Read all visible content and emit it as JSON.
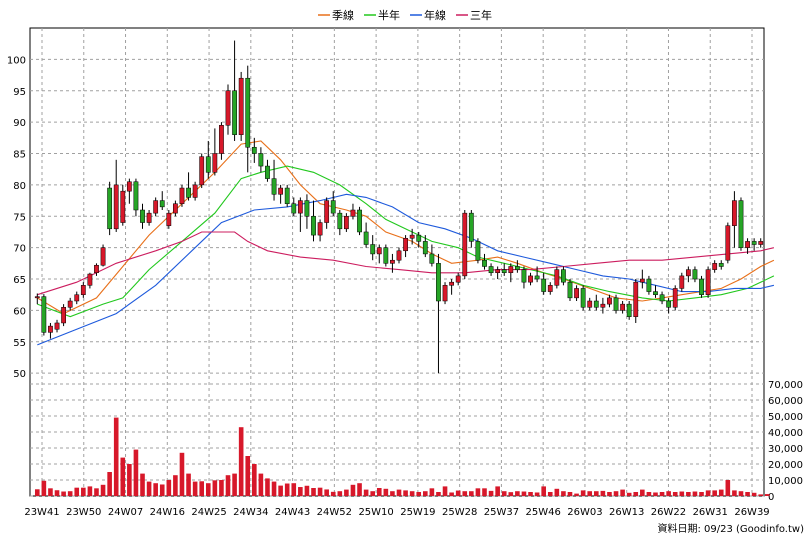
{
  "legend": [
    {
      "label": "季線",
      "color": "#e8701a"
    },
    {
      "label": "半年",
      "color": "#22c81e"
    },
    {
      "label": "年線",
      "color": "#1e5adc"
    },
    {
      "label": "三年",
      "color": "#cc1d5f"
    }
  ],
  "source_label": "資料日期: 09/23  (Goodinfo.tw)",
  "colors": {
    "up": "#d7182a",
    "down": "#26a526",
    "volume": "#d7182a"
  },
  "chart_data": {
    "type": "candlestick",
    "price_ticks": [
      50,
      55,
      60,
      65,
      70,
      75,
      80,
      85,
      90,
      95,
      100
    ],
    "price_range": [
      47,
      105
    ],
    "volume_ticks": [
      "0",
      "10,000",
      "20,000",
      "30,000",
      "40,000",
      "50,000",
      "60,000",
      "70,000"
    ],
    "volume_range": [
      0,
      70000
    ],
    "x_labels": [
      "23W41",
      "23W50",
      "24W07",
      "24W16",
      "24W25",
      "24W34",
      "24W43",
      "24W52",
      "25W10",
      "25W19",
      "25W28",
      "25W37",
      "25W46",
      "26W03",
      "26W13",
      "26W22",
      "26W31",
      "26W39"
    ],
    "ohlc": [
      [
        62,
        62.7,
        61,
        62.2
      ],
      [
        62.2,
        62.6,
        56,
        56.5
      ],
      [
        56.5,
        58,
        55.5,
        57.5
      ],
      [
        57,
        58.5,
        56.5,
        58
      ],
      [
        58,
        61,
        57.5,
        60.5
      ],
      [
        60.5,
        62,
        60,
        61.5
      ],
      [
        61.5,
        63,
        61,
        62.5
      ],
      [
        62.5,
        64.5,
        62,
        64
      ],
      [
        64,
        66,
        63.5,
        65.8
      ],
      [
        66,
        67.5,
        65.5,
        67.2
      ],
      [
        67.2,
        70.5,
        67,
        70
      ],
      [
        79.5,
        80.5,
        72,
        73
      ],
      [
        73,
        84,
        72.5,
        80
      ],
      [
        74,
        80,
        73.5,
        79
      ],
      [
        79,
        81,
        77,
        80.5
      ],
      [
        80.5,
        81,
        75,
        76
      ],
      [
        76,
        77,
        73,
        74
      ],
      [
        74,
        76,
        73.5,
        75.5
      ],
      [
        75.5,
        78,
        75,
        77.5
      ],
      [
        77.5,
        79,
        76,
        76.5
      ],
      [
        73.5,
        76,
        73,
        75.5
      ],
      [
        75.5,
        77.5,
        75,
        77
      ],
      [
        77,
        80,
        76.5,
        79.5
      ],
      [
        79.5,
        82,
        77.5,
        78
      ],
      [
        78,
        80.5,
        77.5,
        80
      ],
      [
        80,
        85,
        79.5,
        84.5
      ],
      [
        84.5,
        87,
        81,
        82
      ],
      [
        82,
        89,
        81.5,
        85
      ],
      [
        85,
        90,
        84,
        89.5
      ],
      [
        89.5,
        96,
        88,
        95
      ],
      [
        95,
        103,
        87,
        88
      ],
      [
        88,
        98,
        87,
        97
      ],
      [
        97,
        99,
        82,
        86
      ],
      [
        86,
        87.5,
        83.5,
        85
      ],
      [
        85,
        86,
        82,
        83
      ],
      [
        83,
        84,
        80.5,
        81
      ],
      [
        81,
        84,
        77.5,
        78.5
      ],
      [
        78.5,
        80,
        77,
        79.5
      ],
      [
        79.5,
        80,
        76.5,
        77
      ],
      [
        77,
        78,
        75,
        75.5
      ],
      [
        75.5,
        78,
        72.5,
        77.5
      ],
      [
        77.5,
        78.5,
        73,
        75
      ],
      [
        75,
        77.5,
        71,
        72
      ],
      [
        72,
        74.5,
        71,
        74
      ],
      [
        74,
        78,
        73,
        77.5
      ],
      [
        77.5,
        79,
        75,
        75.5
      ],
      [
        75.5,
        76,
        72,
        73
      ],
      [
        73,
        75.5,
        72.5,
        75
      ],
      [
        75,
        77,
        74.5,
        76
      ],
      [
        76,
        76.5,
        72,
        72.5
      ],
      [
        72.5,
        74,
        70,
        70.5
      ],
      [
        70.5,
        72,
        68,
        69
      ],
      [
        69,
        70.5,
        67.5,
        70
      ],
      [
        70,
        70.5,
        67,
        67.5
      ],
      [
        67.5,
        69,
        66,
        68
      ],
      [
        68,
        70,
        67.5,
        69.5
      ],
      [
        69.5,
        72,
        68.5,
        71.5
      ],
      [
        71.5,
        73,
        70.5,
        72
      ],
      [
        72,
        72.5,
        70,
        71
      ],
      [
        71,
        72,
        68.5,
        69
      ],
      [
        69,
        70.5,
        67,
        67.5
      ],
      [
        67.5,
        69,
        50,
        61.5
      ],
      [
        61.5,
        64.5,
        61,
        64
      ],
      [
        64,
        65,
        62.5,
        64.5
      ],
      [
        64.5,
        66,
        64,
        65.5
      ],
      [
        65.5,
        76,
        65,
        75.5
      ],
      [
        75.5,
        76,
        70,
        71
      ],
      [
        71,
        71.5,
        67.5,
        68
      ],
      [
        68,
        69,
        66.5,
        67
      ],
      [
        67,
        67.5,
        65.5,
        66
      ],
      [
        66,
        67,
        65,
        66.5
      ],
      [
        66.5,
        67.5,
        65.5,
        66
      ],
      [
        66,
        67.5,
        64.5,
        67
      ],
      [
        67,
        68,
        66,
        66.5
      ],
      [
        66.5,
        67,
        63.5,
        64.5
      ],
      [
        64.5,
        66,
        64,
        65.5
      ],
      [
        65.5,
        67,
        64.5,
        65
      ],
      [
        65,
        66,
        62.5,
        63
      ],
      [
        63,
        64.5,
        62.5,
        64
      ],
      [
        64,
        67,
        63.5,
        66.5
      ],
      [
        66.5,
        67,
        64,
        64.5
      ],
      [
        64.5,
        65,
        61.5,
        62
      ],
      [
        62,
        64,
        61.5,
        63.5
      ],
      [
        63.5,
        64,
        60,
        60.5
      ],
      [
        60.5,
        62,
        60,
        61.5
      ],
      [
        61.5,
        62.5,
        60,
        60.5
      ],
      [
        60.5,
        62,
        59.5,
        61
      ],
      [
        61,
        62.5,
        60.5,
        62
      ],
      [
        62,
        62.5,
        59.5,
        60
      ],
      [
        60,
        61.5,
        59.5,
        61
      ],
      [
        61,
        61.5,
        58.5,
        59
      ],
      [
        59,
        65,
        58,
        64.5
      ],
      [
        64.5,
        66.5,
        63.5,
        65
      ],
      [
        65,
        65.5,
        62.5,
        63
      ],
      [
        63,
        64,
        62,
        62.5
      ],
      [
        62.5,
        63,
        61,
        61.5
      ],
      [
        61.5,
        62,
        59.5,
        60.5
      ],
      [
        60.5,
        64,
        60,
        63.5
      ],
      [
        63.5,
        66,
        63,
        65.5
      ],
      [
        65.5,
        67,
        64.5,
        66.5
      ],
      [
        66.5,
        67,
        64.5,
        65
      ],
      [
        65,
        65.5,
        62,
        62.5
      ],
      [
        62.5,
        67,
        62,
        66.5
      ],
      [
        66.5,
        68,
        66,
        67.5
      ],
      [
        67.5,
        68,
        66.5,
        67
      ],
      [
        68,
        74,
        67.5,
        73.5
      ],
      [
        73.5,
        79,
        70,
        77.5
      ],
      [
        77.5,
        78,
        69.5,
        70
      ],
      [
        70,
        71.5,
        69,
        71
      ],
      [
        71,
        71.5,
        69.5,
        70.5
      ],
      [
        70.5,
        71.5,
        70,
        71
      ]
    ],
    "volume": [
      4200,
      9500,
      4800,
      3600,
      2800,
      3000,
      5200,
      5200,
      6000,
      4800,
      7000,
      15000,
      49000,
      24000,
      20000,
      29000,
      14000,
      9000,
      8000,
      7200,
      10000,
      13000,
      27000,
      14000,
      9000,
      9200,
      8000,
      9800,
      10000,
      13000,
      14000,
      43000,
      25000,
      20000,
      14000,
      11000,
      9000,
      6500,
      7800,
      8000,
      5600,
      6400,
      5000,
      5200,
      4100,
      2600,
      3000,
      4000,
      7000,
      8000,
      4000,
      3000,
      5000,
      4500,
      3000,
      4000,
      3500,
      3000,
      2500,
      3000,
      4800,
      2500,
      6000,
      2200,
      3400,
      3000,
      3000,
      4800,
      4800,
      3200,
      6000,
      3000,
      2400,
      3000,
      2800,
      2500,
      2200,
      6000,
      2500,
      4500,
      3000,
      2500,
      1500,
      3500,
      3000,
      3000,
      3200,
      2500,
      3000,
      4000,
      2000,
      2500,
      4000,
      2500,
      2200,
      2500,
      3000,
      2500,
      2800,
      2500,
      2800,
      2500,
      3500,
      3500,
      4000,
      10000,
      3500,
      3000,
      2500,
      2000,
      1000,
      1200
    ],
    "ma_quarter": [
      [
        0,
        62
      ],
      [
        4,
        59.5
      ],
      [
        9,
        62
      ],
      [
        13,
        67
      ],
      [
        17,
        72
      ],
      [
        22,
        77
      ],
      [
        27,
        82
      ],
      [
        31,
        86.5
      ],
      [
        34,
        87
      ],
      [
        37,
        84
      ],
      [
        40,
        80
      ],
      [
        43,
        77
      ],
      [
        47,
        76
      ],
      [
        50,
        75
      ],
      [
        53,
        72.5
      ],
      [
        57,
        71
      ],
      [
        60,
        69
      ],
      [
        63,
        67.5
      ],
      [
        67,
        68
      ],
      [
        70,
        68.5
      ],
      [
        73,
        67.5
      ],
      [
        77,
        66
      ],
      [
        80,
        65
      ],
      [
        84,
        63.5
      ],
      [
        88,
        62
      ],
      [
        92,
        61.5
      ],
      [
        95,
        62
      ],
      [
        98,
        62.5
      ],
      [
        101,
        63
      ],
      [
        104,
        63.5
      ],
      [
        107,
        65
      ],
      [
        110,
        67
      ],
      [
        112,
        68
      ]
    ],
    "ma_half": [
      [
        0,
        61
      ],
      [
        5,
        59
      ],
      [
        10,
        61
      ],
      [
        13,
        62
      ],
      [
        17,
        66.5
      ],
      [
        22,
        71
      ],
      [
        27,
        75.5
      ],
      [
        31,
        81
      ],
      [
        34,
        82
      ],
      [
        38,
        83
      ],
      [
        42,
        82
      ],
      [
        46,
        80
      ],
      [
        50,
        77
      ],
      [
        53,
        74.5
      ],
      [
        57,
        72.5
      ],
      [
        60,
        71
      ],
      [
        64,
        70
      ],
      [
        67,
        68.5
      ],
      [
        71,
        67.5
      ],
      [
        75,
        66.5
      ],
      [
        79,
        65.5
      ],
      [
        83,
        64
      ],
      [
        87,
        63
      ],
      [
        92,
        62
      ],
      [
        96,
        61.5
      ],
      [
        100,
        62
      ],
      [
        104,
        62.5
      ],
      [
        108,
        63.5
      ],
      [
        112,
        65.5
      ]
    ],
    "ma_year": [
      [
        0,
        54.5
      ],
      [
        6,
        57
      ],
      [
        12,
        59.5
      ],
      [
        18,
        64
      ],
      [
        24,
        70
      ],
      [
        28,
        74
      ],
      [
        33,
        76
      ],
      [
        38,
        76.5
      ],
      [
        43,
        77.5
      ],
      [
        47,
        78.5
      ],
      [
        50,
        78
      ],
      [
        54,
        76.5
      ],
      [
        58,
        74
      ],
      [
        62,
        73
      ],
      [
        66,
        71.5
      ],
      [
        70,
        69.5
      ],
      [
        74,
        68.5
      ],
      [
        78,
        67.5
      ],
      [
        82,
        66.5
      ],
      [
        86,
        65.5
      ],
      [
        90,
        65
      ],
      [
        94,
        64
      ],
      [
        98,
        63
      ],
      [
        102,
        63
      ],
      [
        106,
        63.5
      ],
      [
        110,
        63.5
      ],
      [
        112,
        64
      ]
    ],
    "ma_3y": [
      [
        0,
        62.5
      ],
      [
        6,
        64.5
      ],
      [
        12,
        67.5
      ],
      [
        18,
        69.5
      ],
      [
        22,
        71
      ],
      [
        25,
        72.5
      ],
      [
        30,
        72.5
      ],
      [
        32,
        71
      ],
      [
        35,
        69.5
      ],
      [
        40,
        68.5
      ],
      [
        45,
        68
      ],
      [
        50,
        67
      ],
      [
        55,
        66.5
      ],
      [
        60,
        66
      ],
      [
        65,
        66
      ],
      [
        70,
        66.5
      ],
      [
        75,
        66.5
      ],
      [
        80,
        67
      ],
      [
        85,
        67.5
      ],
      [
        90,
        68
      ],
      [
        95,
        68
      ],
      [
        100,
        68.5
      ],
      [
        105,
        69
      ],
      [
        110,
        69.5
      ],
      [
        112,
        70
      ]
    ]
  }
}
